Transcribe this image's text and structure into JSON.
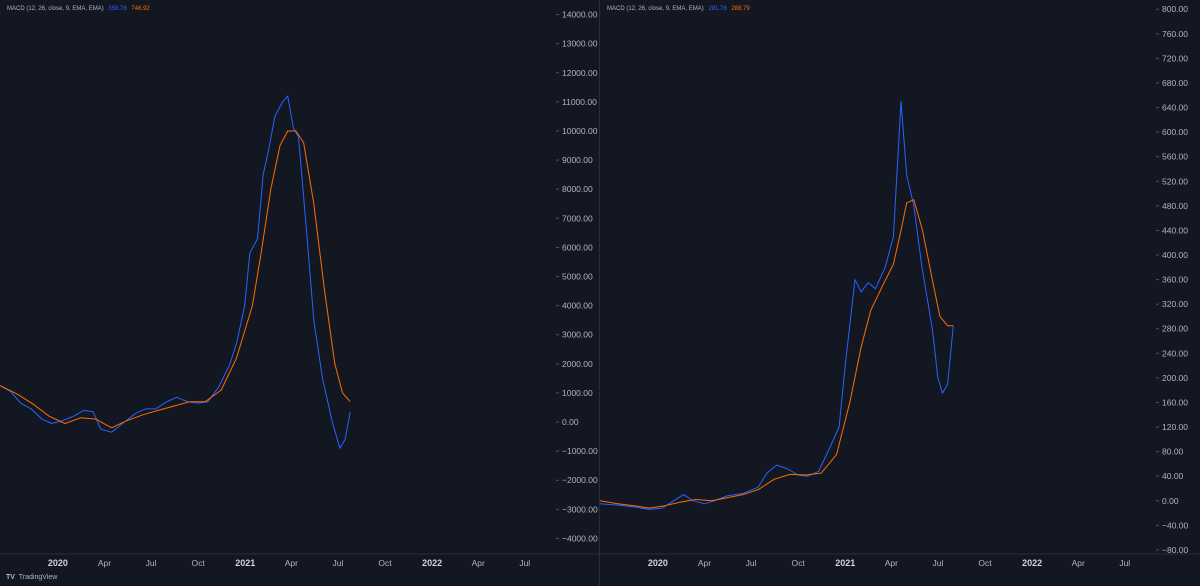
{
  "brand": {
    "logo": "TV",
    "name": "TradingView"
  },
  "colors": {
    "background": "#131722",
    "macd": "#2962ff",
    "signal": "#ff6d00",
    "text": "#b2b5be",
    "divider": "#2a2e39"
  },
  "chart_data": [
    {
      "type": "line",
      "indicator_label": "MACD (12, 26, close, 9, EMA, EMA)",
      "legend_values": [
        "358.76",
        "746.92"
      ],
      "ylim": [
        -4500,
        14500
      ],
      "y_ticks": [
        "14000.00",
        "13000.00",
        "12000.00",
        "11000.00",
        "10000.00",
        "9000.00",
        "8000.00",
        "7000.00",
        "6000.00",
        "5000.00",
        "4000.00",
        "3000.00",
        "2000.00",
        "1000.00",
        "0.00",
        "−1000.00",
        "−2000.00",
        "−3000.00",
        "−4000.00"
      ],
      "y_tick_values": [
        14000,
        13000,
        12000,
        11000,
        10000,
        9000,
        8000,
        7000,
        6000,
        5000,
        4000,
        3000,
        2000,
        1000,
        0,
        -1000,
        -2000,
        -3000,
        -4000
      ],
      "x_ticks": [
        {
          "label": "2020",
          "x": "2020-01",
          "year": true
        },
        {
          "label": "Apr",
          "x": "2020-04",
          "year": false
        },
        {
          "label": "Jul",
          "x": "2020-07",
          "year": false
        },
        {
          "label": "Oct",
          "x": "2020-10",
          "year": false
        },
        {
          "label": "2021",
          "x": "2021-01",
          "year": true
        },
        {
          "label": "Apr",
          "x": "2021-04",
          "year": false
        },
        {
          "label": "Jul",
          "x": "2021-07",
          "year": false
        },
        {
          "label": "Oct",
          "x": "2021-10",
          "year": false
        },
        {
          "label": "2022",
          "x": "2022-01",
          "year": true
        },
        {
          "label": "Apr",
          "x": "2022-04",
          "year": false
        },
        {
          "label": "Jul",
          "x": "2022-07",
          "year": false
        }
      ],
      "x_range": [
        "2019-09-10",
        "2022-08-31"
      ],
      "series": [
        {
          "color": "#2962ff",
          "points": [
            [
              "2019-09-10",
              1250
            ],
            [
              "2019-10-01",
              1050
            ],
            [
              "2019-10-20",
              650
            ],
            [
              "2019-11-10",
              450
            ],
            [
              "2019-12-01",
              100
            ],
            [
              "2019-12-20",
              -50
            ],
            [
              "2020-01-10",
              50
            ],
            [
              "2020-02-01",
              200
            ],
            [
              "2020-02-20",
              400
            ],
            [
              "2020-03-10",
              350
            ],
            [
              "2020-03-25",
              -250
            ],
            [
              "2020-04-15",
              -350
            ],
            [
              "2020-05-10",
              0
            ],
            [
              "2020-06-01",
              300
            ],
            [
              "2020-06-20",
              450
            ],
            [
              "2020-07-10",
              450
            ],
            [
              "2020-08-01",
              700
            ],
            [
              "2020-08-20",
              850
            ],
            [
              "2020-09-10",
              700
            ],
            [
              "2020-10-01",
              650
            ],
            [
              "2020-10-20",
              700
            ],
            [
              "2020-11-10",
              1200
            ],
            [
              "2020-12-01",
              1950
            ],
            [
              "2020-12-15",
              2700
            ],
            [
              "2020-12-31",
              4000
            ],
            [
              "2021-01-10",
              5800
            ],
            [
              "2021-01-25",
              6300
            ],
            [
              "2021-02-05",
              8500
            ],
            [
              "2021-02-15",
              9300
            ],
            [
              "2021-02-28",
              10500
            ],
            [
              "2021-03-15",
              11000
            ],
            [
              "2021-03-25",
              11200
            ],
            [
              "2021-04-05",
              10100
            ],
            [
              "2021-04-15",
              9800
            ],
            [
              "2021-05-01",
              6500
            ],
            [
              "2021-05-15",
              3500
            ],
            [
              "2021-06-01",
              1500
            ],
            [
              "2021-06-20",
              0
            ],
            [
              "2021-07-05",
              -900
            ],
            [
              "2021-07-15",
              -600
            ],
            [
              "2021-07-25",
              350
            ]
          ]
        },
        {
          "color": "#ff6d00",
          "points": [
            [
              "2019-09-10",
              1250
            ],
            [
              "2019-10-15",
              950
            ],
            [
              "2019-11-15",
              600
            ],
            [
              "2019-12-15",
              200
            ],
            [
              "2020-01-15",
              -50
            ],
            [
              "2020-02-15",
              150
            ],
            [
              "2020-03-15",
              100
            ],
            [
              "2020-04-15",
              -200
            ],
            [
              "2020-05-15",
              50
            ],
            [
              "2020-06-15",
              250
            ],
            [
              "2020-07-15",
              400
            ],
            [
              "2020-08-15",
              550
            ],
            [
              "2020-09-15",
              700
            ],
            [
              "2020-10-15",
              700
            ],
            [
              "2020-11-15",
              1100
            ],
            [
              "2020-12-15",
              2200
            ],
            [
              "2021-01-15",
              4000
            ],
            [
              "2021-02-01",
              5800
            ],
            [
              "2021-02-20",
              8000
            ],
            [
              "2021-03-10",
              9500
            ],
            [
              "2021-03-25",
              10000
            ],
            [
              "2021-04-10",
              10000
            ],
            [
              "2021-04-25",
              9600
            ],
            [
              "2021-05-15",
              7500
            ],
            [
              "2021-06-05",
              4500
            ],
            [
              "2021-06-25",
              2000
            ],
            [
              "2021-07-10",
              1000
            ],
            [
              "2021-07-25",
              700
            ]
          ]
        }
      ]
    },
    {
      "type": "line",
      "indicator_label": "MACD (12, 26, close, 9, EMA, EMA)",
      "legend_values": [
        "281.76",
        "288.79"
      ],
      "ylim": [
        -85,
        815
      ],
      "y_ticks": [
        "800.00",
        "760.00",
        "720.00",
        "680.00",
        "640.00",
        "600.00",
        "560.00",
        "520.00",
        "480.00",
        "440.00",
        "400.00",
        "360.00",
        "320.00",
        "280.00",
        "240.00",
        "200.00",
        "160.00",
        "120.00",
        "80.00",
        "40.00",
        "0.00",
        "−40.00",
        "−80.00"
      ],
      "y_tick_values": [
        800,
        760,
        720,
        680,
        640,
        600,
        560,
        520,
        480,
        440,
        400,
        360,
        320,
        280,
        240,
        200,
        160,
        120,
        80,
        40,
        0,
        -40,
        -80
      ],
      "x_ticks": [
        {
          "label": "2020",
          "x": "2020-01",
          "year": true
        },
        {
          "label": "Apr",
          "x": "2020-04",
          "year": false
        },
        {
          "label": "Jul",
          "x": "2020-07",
          "year": false
        },
        {
          "label": "Oct",
          "x": "2020-10",
          "year": false
        },
        {
          "label": "2021",
          "x": "2021-01",
          "year": true
        },
        {
          "label": "Apr",
          "x": "2021-04",
          "year": false
        },
        {
          "label": "Jul",
          "x": "2021-07",
          "year": false
        },
        {
          "label": "Oct",
          "x": "2021-10",
          "year": false
        },
        {
          "label": "2022",
          "x": "2022-01",
          "year": true
        },
        {
          "label": "Apr",
          "x": "2022-04",
          "year": false
        },
        {
          "label": "Jul",
          "x": "2022-07",
          "year": false
        }
      ],
      "x_range": [
        "2019-09-10",
        "2022-08-31"
      ],
      "series": [
        {
          "color": "#2962ff",
          "points": [
            [
              "2019-09-10",
              -5
            ],
            [
              "2019-10-15",
              -7
            ],
            [
              "2019-11-15",
              -10
            ],
            [
              "2019-12-15",
              -14
            ],
            [
              "2020-01-10",
              -12
            ],
            [
              "2020-02-01",
              0
            ],
            [
              "2020-02-20",
              10
            ],
            [
              "2020-03-10",
              0
            ],
            [
              "2020-04-01",
              -5
            ],
            [
              "2020-04-20",
              0
            ],
            [
              "2020-05-15",
              8
            ],
            [
              "2020-06-15",
              12
            ],
            [
              "2020-07-15",
              22
            ],
            [
              "2020-08-01",
              45
            ],
            [
              "2020-08-20",
              58
            ],
            [
              "2020-09-10",
              52
            ],
            [
              "2020-10-01",
              42
            ],
            [
              "2020-10-20",
              40
            ],
            [
              "2020-11-10",
              48
            ],
            [
              "2020-12-01",
              85
            ],
            [
              "2020-12-20",
              120
            ],
            [
              "2021-01-01",
              220
            ],
            [
              "2021-01-20",
              360
            ],
            [
              "2021-02-01",
              340
            ],
            [
              "2021-02-15",
              355
            ],
            [
              "2021-03-01",
              345
            ],
            [
              "2021-03-20",
              380
            ],
            [
              "2021-04-05",
              430
            ],
            [
              "2021-04-20",
              650
            ],
            [
              "2021-05-01",
              530
            ],
            [
              "2021-05-15",
              480
            ],
            [
              "2021-05-31",
              380
            ],
            [
              "2021-06-20",
              280
            ],
            [
              "2021-07-01",
              200
            ],
            [
              "2021-07-10",
              175
            ],
            [
              "2021-07-20",
              190
            ],
            [
              "2021-07-31",
              285
            ]
          ]
        },
        {
          "color": "#ff6d00",
          "points": [
            [
              "2019-09-10",
              0
            ],
            [
              "2019-10-15",
              -5
            ],
            [
              "2019-11-15",
              -8
            ],
            [
              "2019-12-15",
              -12
            ],
            [
              "2020-01-15",
              -8
            ],
            [
              "2020-02-15",
              -2
            ],
            [
              "2020-03-15",
              2
            ],
            [
              "2020-04-15",
              0
            ],
            [
              "2020-05-15",
              5
            ],
            [
              "2020-06-15",
              10
            ],
            [
              "2020-07-15",
              18
            ],
            [
              "2020-08-15",
              35
            ],
            [
              "2020-09-15",
              43
            ],
            [
              "2020-10-15",
              42
            ],
            [
              "2020-11-15",
              45
            ],
            [
              "2020-12-15",
              75
            ],
            [
              "2021-01-10",
              160
            ],
            [
              "2021-02-01",
              250
            ],
            [
              "2021-02-20",
              310
            ],
            [
              "2021-03-15",
              350
            ],
            [
              "2021-04-05",
              385
            ],
            [
              "2021-04-20",
              440
            ],
            [
              "2021-05-01",
              485
            ],
            [
              "2021-05-15",
              490
            ],
            [
              "2021-06-01",
              440
            ],
            [
              "2021-06-20",
              360
            ],
            [
              "2021-07-05",
              300
            ],
            [
              "2021-07-20",
              285
            ],
            [
              "2021-07-31",
              285
            ]
          ]
        }
      ]
    }
  ]
}
